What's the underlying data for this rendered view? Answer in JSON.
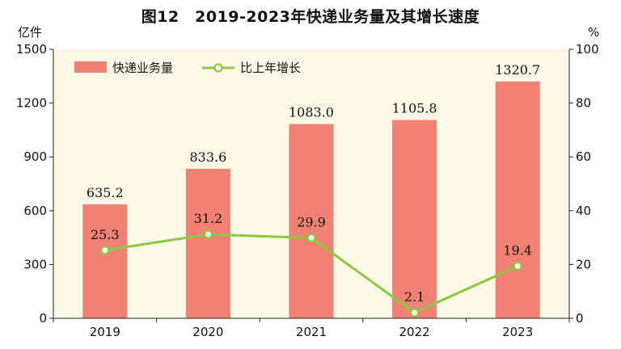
{
  "title": "图12　2019-2023年快递业务量及其增长速度",
  "chart_data": {
    "type": "bar",
    "categories": [
      "2019",
      "2020",
      "2021",
      "2022",
      "2023"
    ],
    "series": [
      {
        "name": "快递业务量",
        "type": "bar",
        "axis": "left",
        "values": [
          635.2,
          833.6,
          1083.0,
          1105.8,
          1320.7
        ],
        "labels": [
          "635.2",
          "833.6",
          "1083.0",
          "1105.8",
          "1320.7"
        ],
        "color": "#f08173"
      },
      {
        "name": "比上年增长",
        "type": "line",
        "axis": "right",
        "values": [
          25.3,
          31.2,
          29.9,
          2.1,
          19.4
        ],
        "labels": [
          "25.3",
          "31.2",
          "29.9",
          "2.1",
          "19.4"
        ],
        "color": "#8dc63f"
      }
    ],
    "y_left": {
      "unit": "亿件",
      "range": [
        0,
        1500
      ],
      "ticks": [
        "0",
        "300",
        "600",
        "900",
        "1200",
        "1500"
      ]
    },
    "y_right": {
      "unit": "%",
      "range": [
        0,
        100
      ],
      "ticks": [
        "0",
        "20",
        "40",
        "60",
        "80",
        "100"
      ]
    },
    "grid": false,
    "legend_position": "top-left"
  }
}
